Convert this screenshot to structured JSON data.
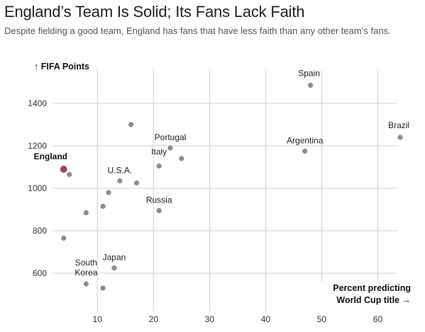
{
  "header": {
    "title": "England’s Team Is Solid; Its Fans Lack Faith",
    "subtitle": "Despite fielding a good team, England has fans that have less faith than any other team’s fans."
  },
  "colors": {
    "point": "#8c8c8c",
    "highlight": "#9c4566",
    "grid": "#cfcfcf"
  },
  "chart_data": {
    "type": "scatter",
    "title": "",
    "ylabel": "↑ FIFA Points",
    "xlabel_lines": [
      "Percent predicting",
      "World Cup title →"
    ],
    "xlim": [
      2,
      65
    ],
    "ylim": [
      470,
      1560
    ],
    "x_ticks": [
      10,
      20,
      30,
      40,
      50,
      60
    ],
    "y_ticks": [
      600,
      800,
      1000,
      1200,
      1400
    ],
    "x_tick_labels": [
      "10",
      "20",
      "30",
      "40",
      "50",
      "60"
    ],
    "y_tick_labels": [
      "600",
      "800",
      "1000",
      "1200",
      "1400"
    ],
    "grid": true,
    "points": [
      {
        "x": 4,
        "y": 1090,
        "label": "England",
        "highlight": true
      },
      {
        "x": 5,
        "y": 1065,
        "label": ""
      },
      {
        "x": 16,
        "y": 1300,
        "label": ""
      },
      {
        "x": 23,
        "y": 1190,
        "label": "Portugal"
      },
      {
        "x": 25,
        "y": 1140,
        "label": ""
      },
      {
        "x": 21,
        "y": 1105,
        "label": "Italy"
      },
      {
        "x": 14,
        "y": 1035,
        "label": "U.S.A."
      },
      {
        "x": 17,
        "y": 1025,
        "label": ""
      },
      {
        "x": 12,
        "y": 980,
        "label": ""
      },
      {
        "x": 11,
        "y": 915,
        "label": ""
      },
      {
        "x": 8,
        "y": 885,
        "label": ""
      },
      {
        "x": 21,
        "y": 895,
        "label": "Russia"
      },
      {
        "x": 4,
        "y": 765,
        "label": ""
      },
      {
        "x": 13,
        "y": 625,
        "label": "Japan"
      },
      {
        "x": 8,
        "y": 550,
        "label": "South Korea"
      },
      {
        "x": 11,
        "y": 530,
        "label": ""
      },
      {
        "x": 48,
        "y": 1485,
        "label": "Spain"
      },
      {
        "x": 47,
        "y": 1175,
        "label": "Argentina"
      },
      {
        "x": 64,
        "y": 1240,
        "label": "Brazil"
      }
    ]
  }
}
